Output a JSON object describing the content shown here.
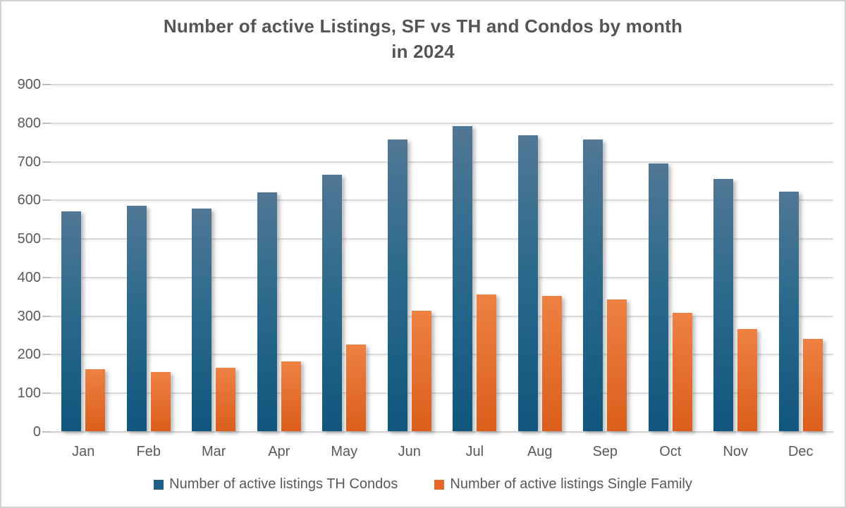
{
  "title": {
    "line1": "Number of active Listings, SF vs TH and Condos by month",
    "line2": "in 2024"
  },
  "legend": {
    "items": [
      {
        "label": "Number of active listings TH Condos",
        "series": "th"
      },
      {
        "label": "Number of active listings Single Family",
        "series": "sf"
      }
    ],
    "position": "bottom"
  },
  "chart_data": {
    "type": "bar",
    "title": "Number of active Listings, SF vs TH and Condos by month in 2024",
    "categories": [
      "Jan",
      "Feb",
      "Mar",
      "Apr",
      "May",
      "Jun",
      "Jul",
      "Aug",
      "Sep",
      "Oct",
      "Nov",
      "Dec"
    ],
    "series": [
      {
        "name": "Number of active listings TH Condos",
        "key": "th",
        "values": [
          570,
          585,
          577,
          618,
          665,
          756,
          790,
          766,
          755,
          694,
          654,
          620
        ]
      },
      {
        "name": "Number of active listings Single Family",
        "key": "sf",
        "values": [
          161,
          154,
          165,
          181,
          224,
          313,
          355,
          350,
          342,
          306,
          265,
          239
        ]
      }
    ],
    "xlabel": "",
    "ylabel": "",
    "ylim": [
      0,
      900
    ],
    "yticks": [
      0,
      100,
      200,
      300,
      400,
      500,
      600,
      700,
      800,
      900
    ],
    "grid": true,
    "legend_position": "bottom"
  },
  "colors": {
    "blue_top": "#517795",
    "blue_mid": "#2c6a8c",
    "blue_bottom": "#10567d",
    "orange_top": "#ee8143",
    "orange_bottom": "#db5e1b",
    "legend_blue": "#1f5f82",
    "legend_orange": "#e5692b",
    "grid": "#dadada",
    "text": "#595959",
    "title_text": "#555555"
  }
}
